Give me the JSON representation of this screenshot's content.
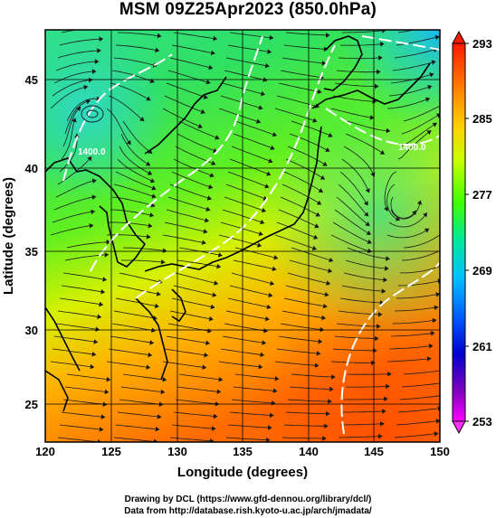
{
  "title": "MSM 09Z25Apr2023 (850.0hPa)",
  "axes": {
    "x_label": "Longitude (degrees)",
    "y_label": "Latitude  (degrees)",
    "x_ticks": [
      "120",
      "125",
      "130",
      "135",
      "140",
      "145",
      "150"
    ],
    "y_ticks": [
      "45",
      "40",
      "35",
      "30",
      "25"
    ]
  },
  "colorbar": {
    "ticks": [
      "293",
      "285",
      "277",
      "269",
      "261",
      "253"
    ],
    "colors": [
      "#ff1a00",
      "#ff8000",
      "#ffd000",
      "#c8ff00",
      "#40ff00",
      "#00e89a",
      "#00c0ff",
      "#0060ff",
      "#0000d0",
      "#8000c0",
      "#ff00ff"
    ]
  },
  "contour_labels": [
    "1400.0",
    "1400.0"
  ],
  "footer": {
    "line1": "Drawing by DCL (https://www.gfd-dennou.org/library/dcl/)",
    "line2": "Data from http://database.rish.kyoto-u.ac.jp/arch/jmadata/"
  }
}
